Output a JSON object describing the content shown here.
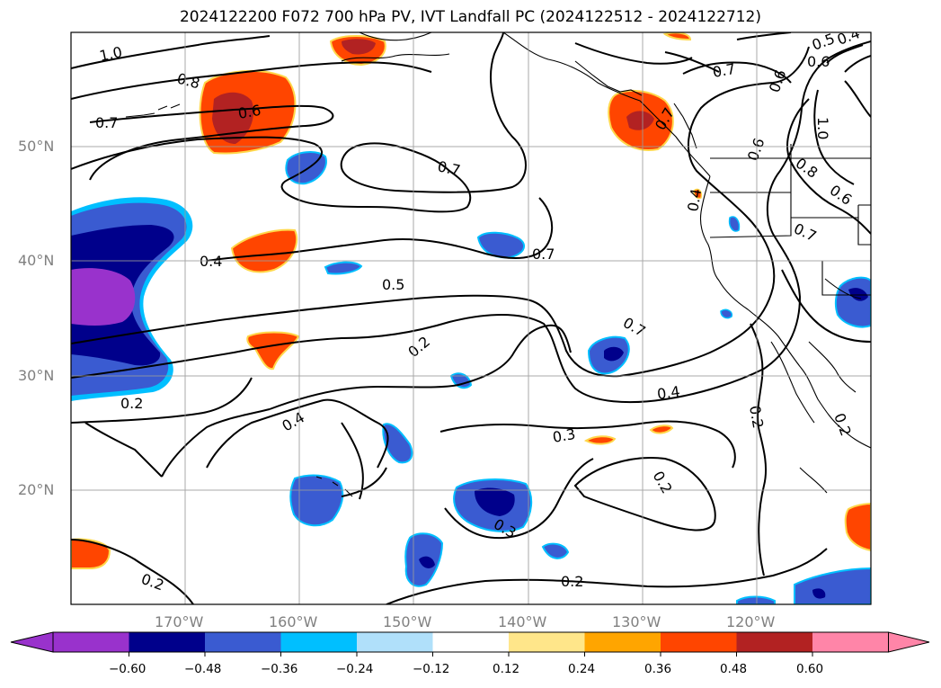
{
  "title": "2024122200 F072 700 hPa PV, IVT Landfall PC (2024122512 - 2024122712)",
  "map": {
    "lon_range": [
      -180,
      -110
    ],
    "lat_range": [
      10,
      60
    ],
    "lon_ticks": [
      "170°W",
      "160°W",
      "150°W",
      "140°W",
      "130°W",
      "120°W"
    ],
    "lat_ticks": [
      "50°N",
      "40°N",
      "30°N",
      "20°N"
    ],
    "grid": true,
    "tick_label_color": "#808080"
  },
  "colorbar": {
    "orientation": "horizontal",
    "extend": "both",
    "bins": [
      "#9932cc",
      "#00008b",
      "#3a5bd1",
      "#00bfff",
      "#b0e0fa",
      "#ffffff",
      "#ffe68a",
      "#ffa500",
      "#ff4500",
      "#b22222",
      "#ff85a8"
    ],
    "tick_labels": [
      "−0.60",
      "−0.48",
      "−0.36",
      "−0.24",
      "−0.12",
      "0.12",
      "0.24",
      "0.36",
      "0.48",
      "0.60"
    ]
  },
  "contour_labels": [
    "1.0",
    "0.8",
    "0.7",
    "0.6",
    "0.4",
    "0.2",
    "0.7",
    "0.5",
    "0.7",
    "0.2",
    "0.4",
    "0.3",
    "0.4",
    "0.3",
    "0.2",
    "0.2",
    "0.2",
    "0.7",
    "0.6",
    "0.5",
    "0.4",
    "0.7",
    "0.6",
    "1.0",
    "0.8",
    "0.6",
    "0.7",
    "0.7",
    "0.2",
    "0.2",
    "0.4",
    "0.6"
  ]
}
